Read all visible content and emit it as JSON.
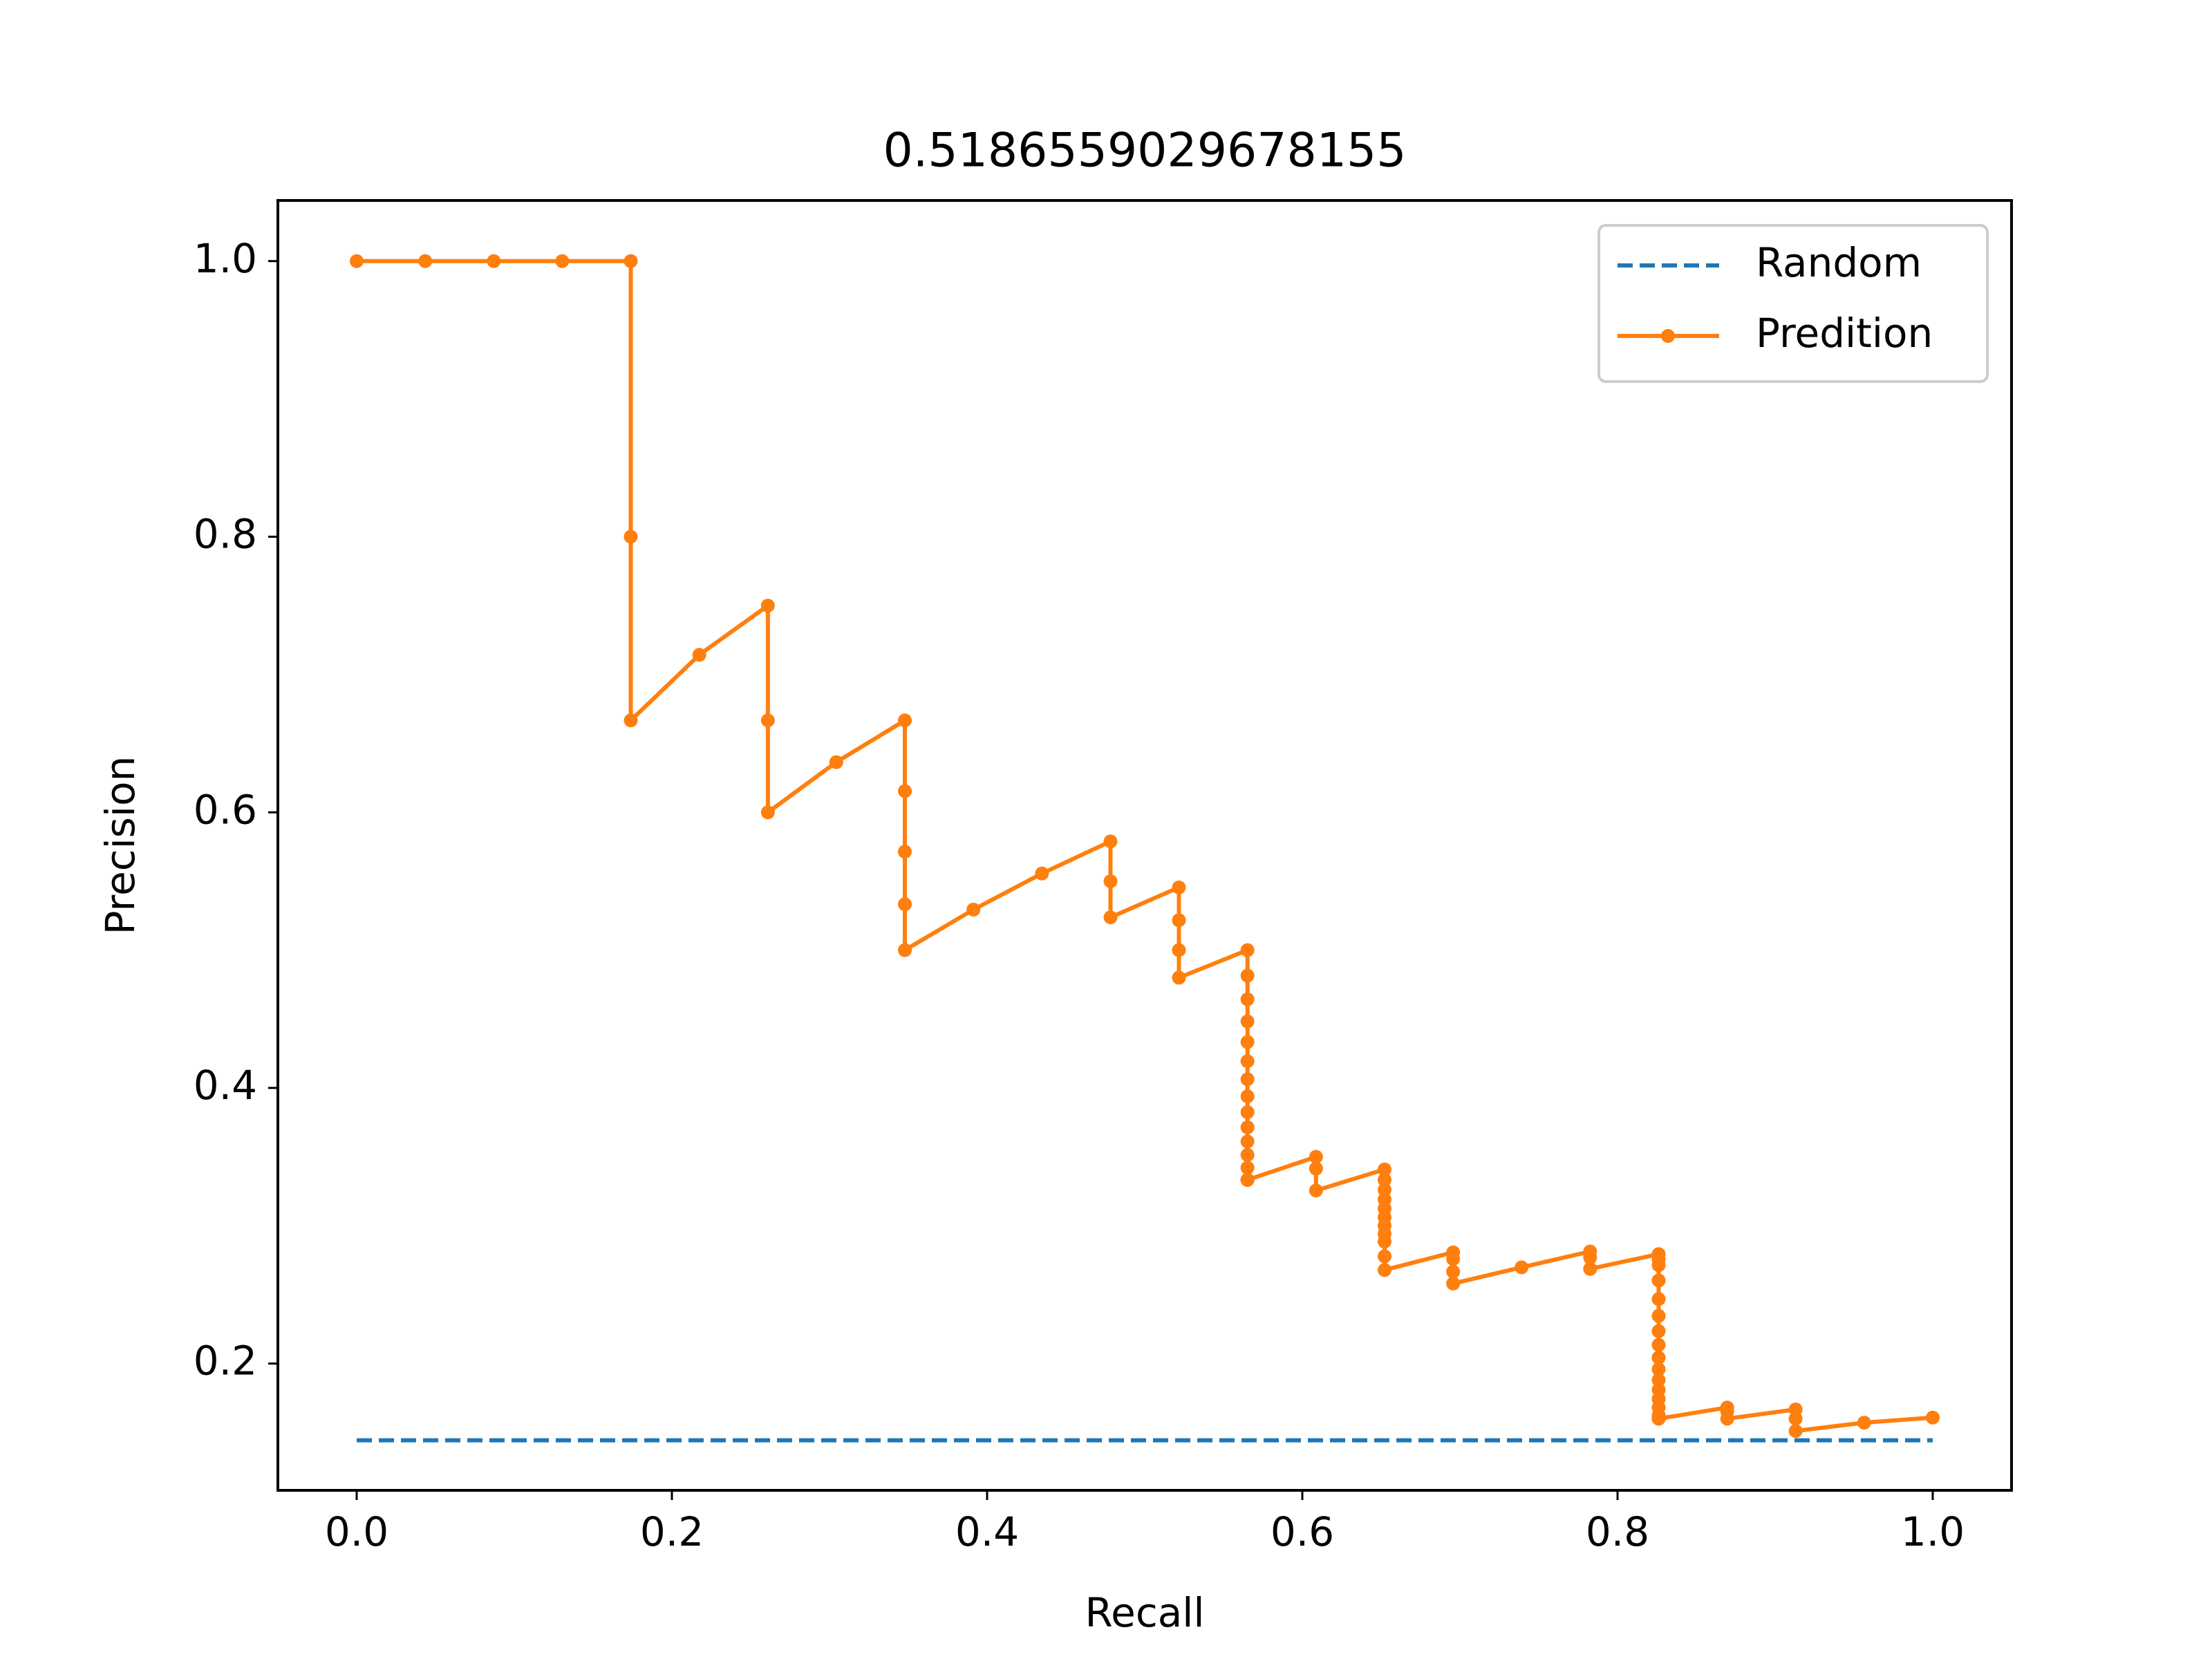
{
  "chart_data": {
    "type": "line",
    "title": "0.5186559029678155",
    "xlabel": "Recall",
    "ylabel": "Precision",
    "xlim": [
      -0.05,
      1.05
    ],
    "ylim": [
      0.108,
      1.044
    ],
    "xticks": [
      0.0,
      0.2,
      0.4,
      0.6,
      0.8,
      1.0
    ],
    "yticks": [
      0.2,
      0.4,
      0.6,
      0.8,
      1.0
    ],
    "xtick_labels": [
      "0.0",
      "0.2",
      "0.4",
      "0.6",
      "0.8",
      "1.0"
    ],
    "ytick_labels": [
      "0.2",
      "0.4",
      "0.6",
      "0.8",
      "1.0"
    ],
    "grid": false,
    "legend_position": "top-right",
    "series": [
      {
        "name": "Random",
        "style": "dashed",
        "color": "#1f77b4",
        "x": [
          0.0,
          1.0
        ],
        "y": [
          0.1443,
          0.1443
        ]
      },
      {
        "name": "Predition",
        "style": "solid-marker",
        "color": "#ff7f0e",
        "x": [
          0.0,
          0.0435,
          0.087,
          0.1304,
          0.1739,
          0.1739,
          0.1739,
          0.2174,
          0.2609,
          0.2609,
          0.2609,
          0.3043,
          0.3478,
          0.3478,
          0.3478,
          0.3478,
          0.3478,
          0.3913,
          0.4348,
          0.4783,
          0.4783,
          0.4783,
          0.5217,
          0.5217,
          0.5217,
          0.5217,
          0.5652,
          0.5652,
          0.5652,
          0.5652,
          0.5652,
          0.5652,
          0.5652,
          0.5652,
          0.5652,
          0.5652,
          0.5652,
          0.5652,
          0.5652,
          0.5652,
          0.5652,
          0.5652,
          0.5652,
          0.5652,
          0.6087,
          0.6087,
          0.6087,
          0.6522,
          0.6522,
          0.6522,
          0.6522,
          0.6522,
          0.6522,
          0.6522,
          0.6522,
          0.6522,
          0.6522,
          0.6522,
          0.6957,
          0.6957,
          0.6957,
          0.6957,
          0.7391,
          0.7826,
          0.7826,
          0.7826,
          0.8261,
          0.8261,
          0.8261,
          0.8261,
          0.8261,
          0.8261,
          0.8261,
          0.8261,
          0.8261,
          0.8261,
          0.8261,
          0.8261,
          0.8261,
          0.8261,
          0.8261,
          0.8261,
          0.8261,
          0.8696,
          0.8696,
          0.8696,
          0.913,
          0.913,
          0.913,
          0.9565,
          1.0
        ],
        "y": [
          1.0,
          1.0,
          1.0,
          1.0,
          1.0,
          0.8,
          0.6667,
          0.7143,
          0.75,
          0.6667,
          0.6,
          0.6364,
          0.6667,
          0.6154,
          0.5714,
          0.5333,
          0.5,
          0.5294,
          0.5556,
          0.5789,
          0.55,
          0.5238,
          0.5455,
          0.5217,
          0.5,
          0.48,
          0.5,
          0.4815,
          0.4643,
          0.4483,
          0.4333,
          0.4194,
          0.4063,
          0.3939,
          0.3824,
          0.3714,
          0.3611,
          0.3514,
          0.3421,
          0.3333,
          0.3333,
          0.3333,
          0.3333,
          0.3333,
          0.35,
          0.3415,
          0.3256,
          0.3409,
          0.3333,
          0.3261,
          0.3191,
          0.3125,
          0.3061,
          0.3,
          0.2941,
          0.2885,
          0.2778,
          0.2679,
          0.2807,
          0.2759,
          0.2667,
          0.2581,
          0.2698,
          0.2813,
          0.2769,
          0.2687,
          0.2794,
          0.2754,
          0.2714,
          0.2603,
          0.2468,
          0.2346,
          0.2235,
          0.2135,
          0.2043,
          0.1959,
          0.1881,
          0.1809,
          0.1743,
          0.1681,
          0.1624,
          0.16,
          0.16,
          0.1681,
          0.1653,
          0.16,
          0.1667,
          0.16,
          0.1511,
          0.1571,
          0.1608
        ]
      }
    ]
  }
}
